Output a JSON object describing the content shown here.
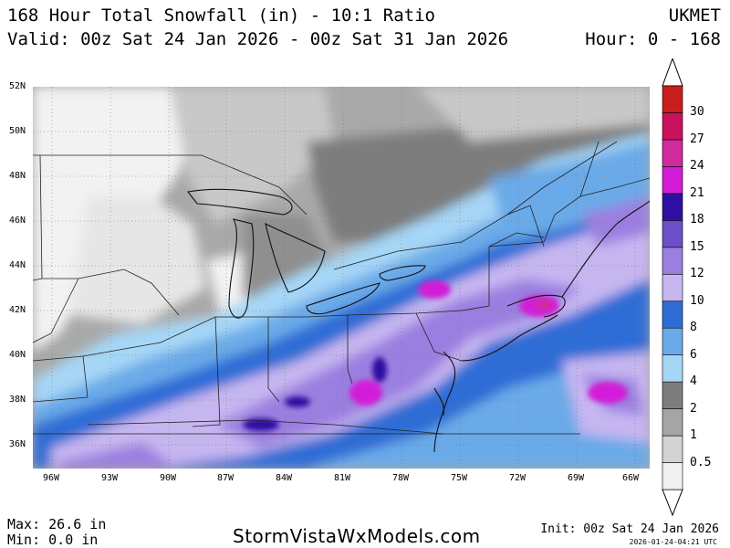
{
  "header": {
    "title": "168 Hour Total Snowfall (in) - 10:1 Ratio",
    "valid": "Valid: 00z Sat 24 Jan 2026 - 00z Sat 31 Jan 2026",
    "model": "UKMET",
    "hour_range": "Hour: 0 - 168"
  },
  "map": {
    "lat_labels": [
      "52N",
      "50N",
      "48N",
      "46N",
      "44N",
      "42N",
      "40N",
      "38N",
      "36N"
    ],
    "lon_labels": [
      "96W",
      "93W",
      "90W",
      "87W",
      "84W",
      "81W",
      "78W",
      "75W",
      "72W",
      "69W",
      "66W"
    ]
  },
  "colorbar": {
    "levels": [
      "0.5",
      "1",
      "2",
      "4",
      "6",
      "8",
      "10",
      "12",
      "15",
      "18",
      "21",
      "24",
      "27",
      "30"
    ],
    "colors": [
      "#f0f0f0",
      "#d2d2d2",
      "#a5a5a5",
      "#7d7d7d",
      "#a6d6f6",
      "#6aaae8",
      "#2f6dd6",
      "#c6b6f0",
      "#9b7fe0",
      "#6a4fc8",
      "#2e0fa2",
      "#d31cd8",
      "#d02a9c",
      "#c8125e",
      "#c81e1e"
    ]
  },
  "footer": {
    "max": "Max: 26.6 in",
    "min": "Min: 0.0 in",
    "brand": "StormVistaWxModels.com",
    "init": "Init: 00z Sat 24 Jan 2026",
    "timestamp": "2026-01-24-04:21 UTC"
  }
}
